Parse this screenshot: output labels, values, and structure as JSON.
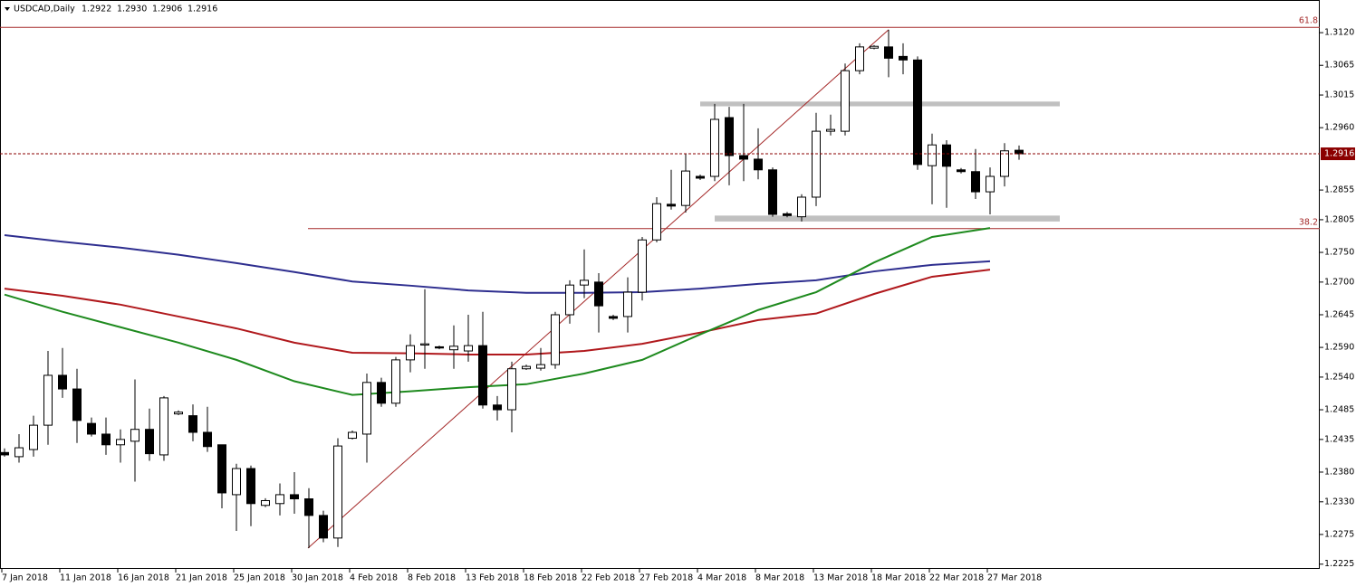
{
  "chart_data": {
    "type": "candlestick",
    "title": "USDCAD,Daily",
    "title_values": [
      "1.2922",
      "1.2930",
      "1.2906",
      "1.2916"
    ],
    "categories": [
      "7 Jan 2018",
      null,
      null,
      null,
      "11 Jan 2018",
      null,
      null,
      null,
      "16 Jan 2018",
      null,
      null,
      null,
      "21 Jan 2018",
      null,
      null,
      null,
      "25 Jan 2018",
      null,
      null,
      null,
      "30 Jan 2018",
      null,
      null,
      null,
      "4 Feb 2018",
      null,
      null,
      null,
      "8 Feb 2018",
      null,
      null,
      null,
      "13 Feb 2018",
      null,
      null,
      null,
      "18 Feb 2018",
      null,
      null,
      null,
      "22 Feb 2018",
      null,
      null,
      null,
      "27 Feb 2018",
      null,
      null,
      null,
      "4 Mar 2018",
      null,
      null,
      null,
      "8 Mar 2018",
      null,
      null,
      null,
      "13 Mar 2018",
      null,
      null,
      null,
      "18 Mar 2018",
      null,
      null,
      null,
      "22 Mar 2018",
      null,
      null,
      null,
      "27 Mar 2018",
      null,
      null
    ],
    "open": [
      1.2413,
      1.2406,
      1.2418,
      1.2459,
      1.2543,
      1.252,
      1.2462,
      1.2444,
      1.2426,
      1.2432,
      1.2452,
      1.2409,
      1.2478,
      1.2475,
      1.2447,
      1.2426,
      1.2342,
      1.2386,
      1.2324,
      1.2327,
      1.2342,
      1.2335,
      1.2307,
      1.2269,
      1.2437,
      1.2444,
      1.2531,
      1.2496,
      1.2569,
      1.2594,
      1.2591,
      1.2586,
      1.2584,
      1.2593,
      1.2493,
      1.2485,
      1.2554,
      1.2555,
      1.2561,
      1.2645,
      1.2695,
      1.27,
      1.2642,
      1.2642,
      1.2683,
      1.2771,
      1.2831,
      1.2829,
      1.2878,
      1.2878,
      1.2977,
      1.2913,
      1.2907,
      1.2889,
      1.2815,
      1.281,
      1.2843,
      1.2954,
      1.2954,
      1.3056,
      1.3094,
      1.3096,
      1.308,
      1.3074,
      1.2896,
      1.2931,
      1.2889,
      1.2886,
      1.2852,
      1.2878,
      1.2922
    ],
    "high": [
      1.242,
      1.2444,
      1.2475,
      1.2584,
      1.2589,
      1.2554,
      1.2472,
      1.2472,
      1.2452,
      1.2536,
      1.2487,
      1.2508,
      1.2484,
      1.2494,
      1.249,
      1.2426,
      1.2394,
      1.2391,
      1.2336,
      1.2361,
      1.238,
      1.2353,
      1.2315,
      1.2437,
      1.245,
      1.2546,
      1.2539,
      1.2574,
      1.2612,
      1.2688,
      1.2593,
      1.2627,
      1.2645,
      1.265,
      1.2508,
      1.2566,
      1.2561,
      1.2589,
      1.265,
      1.2703,
      1.2755,
      1.2715,
      1.2645,
      1.2708,
      1.2776,
      1.2843,
      1.2889,
      1.2916,
      1.2881,
      1.3,
      1.2995,
      1.3,
      1.2959,
      1.2893,
      1.2818,
      1.2848,
      1.2985,
      1.2982,
      1.3068,
      1.3102,
      1.3099,
      1.3125,
      1.3102,
      1.308,
      1.295,
      1.2939,
      1.2892,
      1.2924,
      1.2893,
      1.2934,
      1.293
    ],
    "low": [
      1.2406,
      1.2396,
      1.2406,
      1.2426,
      1.2505,
      1.2429,
      1.244,
      1.2409,
      1.2396,
      1.2364,
      1.2399,
      1.2399,
      1.2476,
      1.2432,
      1.2414,
      1.2319,
      1.2281,
      1.2289,
      1.2321,
      1.2307,
      1.231,
      1.2252,
      1.2262,
      1.2254,
      1.2435,
      1.2396,
      1.249,
      1.249,
      1.2548,
      1.2554,
      1.2587,
      1.2554,
      1.2566,
      1.2487,
      1.2467,
      1.2447,
      1.2552,
      1.2551,
      1.2554,
      1.263,
      1.2673,
      1.2615,
      1.2636,
      1.2615,
      1.2669,
      1.2767,
      1.2822,
      1.2817,
      1.2872,
      1.287,
      1.2863,
      1.287,
      1.2873,
      1.281,
      1.2809,
      1.2802,
      1.2828,
      1.2947,
      1.2947,
      1.305,
      1.3092,
      1.3045,
      1.305,
      1.2889,
      1.2831,
      1.2825,
      1.2883,
      1.284,
      1.2814,
      1.2861,
      1.2906
    ],
    "close": [
      1.2409,
      1.2421,
      1.2459,
      1.2543,
      1.252,
      1.2467,
      1.2444,
      1.2426,
      1.2435,
      1.2452,
      1.2411,
      1.2505,
      1.2481,
      1.2447,
      1.2423,
      1.2345,
      1.2386,
      1.2327,
      1.2332,
      1.2342,
      1.2335,
      1.2307,
      1.2269,
      1.2424,
      1.2447,
      1.2531,
      1.2496,
      1.2569,
      1.2593,
      1.2596,
      1.2589,
      1.2592,
      1.2593,
      1.2493,
      1.2485,
      1.2554,
      1.2558,
      1.2561,
      1.2645,
      1.2695,
      1.2703,
      1.266,
      1.2639,
      1.2683,
      1.2771,
      1.2832,
      1.2828,
      1.2887,
      1.2875,
      1.2974,
      1.2913,
      1.2907,
      1.2889,
      1.2814,
      1.2812,
      1.2843,
      1.2954,
      1.2957,
      1.3056,
      1.3096,
      1.3097,
      1.3077,
      1.3074,
      1.2898,
      1.2931,
      1.2895,
      1.2886,
      1.2852,
      1.2878,
      1.2921,
      1.2916
    ],
    "moving_averages": [
      {
        "color": "#2e2e8f",
        "x": [
          "7 Jan 2018",
          "11 Jan 2018",
          "16 Jan 2018",
          "21 Jan 2018",
          "25 Jan 2018",
          "30 Jan 2018",
          "4 Feb 2018",
          "8 Feb 2018",
          "13 Feb 2018",
          "18 Feb 2018",
          "22 Feb 2018",
          "27 Feb 2018",
          "4 Mar 2018",
          "8 Mar 2018",
          "13 Mar 2018",
          "18 Mar 2018",
          "22 Mar 2018",
          "27 Mar 2018"
        ],
        "values": [
          1.2779,
          1.2768,
          1.2758,
          1.2746,
          1.2732,
          1.2717,
          1.2701,
          1.2694,
          1.2686,
          1.2682,
          1.2682,
          1.2683,
          1.2689,
          1.2697,
          1.2703,
          1.2718,
          1.2729,
          1.2735
        ]
      },
      {
        "color": "#b0181c",
        "x": [
          "7 Jan 2018",
          "11 Jan 2018",
          "16 Jan 2018",
          "21 Jan 2018",
          "25 Jan 2018",
          "30 Jan 2018",
          "4 Feb 2018",
          "8 Feb 2018",
          "13 Feb 2018",
          "18 Feb 2018",
          "22 Feb 2018",
          "27 Feb 2018",
          "4 Mar 2018",
          "8 Mar 2018",
          "13 Mar 2018",
          "18 Mar 2018",
          "22 Mar 2018",
          "27 Mar 2018"
        ],
        "values": [
          1.2689,
          1.2677,
          1.2662,
          1.2642,
          1.2622,
          1.2598,
          1.2581,
          1.258,
          1.2578,
          1.2578,
          1.2584,
          1.2596,
          1.2615,
          1.2636,
          1.2647,
          1.268,
          1.2709,
          1.2721
        ]
      },
      {
        "color": "#1e8a1e",
        "x": [
          "7 Jan 2018",
          "11 Jan 2018",
          "16 Jan 2018",
          "21 Jan 2018",
          "25 Jan 2018",
          "30 Jan 2018",
          "4 Feb 2018",
          "8 Feb 2018",
          "13 Feb 2018",
          "18 Feb 2018",
          "22 Feb 2018",
          "27 Feb 2018",
          "4 Mar 2018",
          "8 Mar 2018",
          "13 Mar 2018",
          "18 Mar 2018",
          "22 Mar 2018",
          "27 Mar 2018"
        ],
        "values": [
          1.2679,
          1.265,
          1.2624,
          1.2598,
          1.2569,
          1.2533,
          1.251,
          1.2516,
          1.2523,
          1.2528,
          1.2546,
          1.2569,
          1.2612,
          1.2653,
          1.2683,
          1.2733,
          1.2776,
          1.2791
        ]
      }
    ],
    "fib_levels": [
      {
        "value": 1.3129,
        "label": "61.8"
      },
      {
        "value": 1.279,
        "label": "38.2"
      }
    ],
    "fib_color": "#a52a2a",
    "trendline": [
      1.2252,
      1.3125
    ],
    "zones": [
      [
        1.2996,
        1.3004
      ],
      [
        1.2802,
        1.2812
      ]
    ],
    "zone_color": "#c0c0c0",
    "last_price": {
      "value": 1.2916,
      "label": "1.2916"
    },
    "ylim": [
      1.2217,
      1.3175
    ],
    "yticks": [
      {
        "value": 1.312,
        "label": "1.3120"
      },
      1.3065,
      1.3015,
      {
        "value": 1.296,
        "label": "1.2960"
      },
      1.2855,
      {
        "value": 1.2805,
        "label": "1.2805"
      },
      {
        "value": 1.275,
        "label": "1.2750"
      },
      {
        "value": 1.27,
        "label": "1.2700"
      },
      1.2645,
      {
        "value": 1.259,
        "label": "1.2590"
      },
      {
        "value": 1.254,
        "label": "1.2540"
      },
      1.2485,
      1.2435,
      {
        "value": 1.238,
        "label": "1.2380"
      },
      {
        "value": 1.233,
        "label": "1.2330"
      },
      1.2275,
      1.2225
    ]
  }
}
